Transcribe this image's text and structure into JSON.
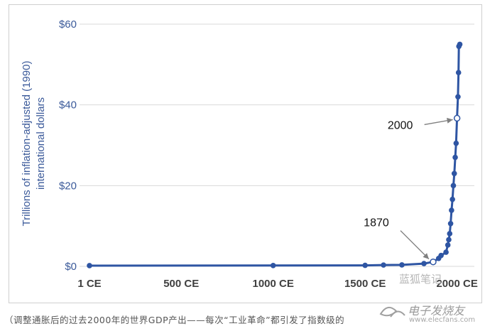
{
  "chart_data": {
    "type": "line",
    "title": "",
    "ylabel_line1": "Trillions of inflation-adjusted (1990)",
    "ylabel_line2": "international dollars",
    "xlabel": "",
    "xlim": [
      1,
      2040
    ],
    "ylim": [
      0,
      60
    ],
    "yticks": [
      {
        "value": 0,
        "label": "$0"
      },
      {
        "value": 20,
        "label": "$20"
      },
      {
        "value": 40,
        "label": "$40"
      },
      {
        "value": 60,
        "label": "$60"
      }
    ],
    "xticks": [
      {
        "value": 1,
        "label": "1 CE"
      },
      {
        "value": 500,
        "label": "500 CE"
      },
      {
        "value": 1000,
        "label": "1000 CE"
      },
      {
        "value": 1500,
        "label": "1500 CE"
      },
      {
        "value": 2000,
        "label": "2000 CE"
      }
    ],
    "grid": true,
    "series": [
      {
        "color": "#2e55a3",
        "x": [
          1,
          1000,
          1500,
          1600,
          1700,
          1820,
          1870,
          1900,
          1913,
          1940,
          1950,
          1955,
          1960,
          1965,
          1970,
          1975,
          1980,
          1985,
          1990,
          1995,
          2000,
          2005,
          2008,
          2010,
          2015
        ],
        "y": [
          0.18,
          0.21,
          0.25,
          0.33,
          0.37,
          0.69,
          1.11,
          1.97,
          2.7,
          3.5,
          5.3,
          6.6,
          8.1,
          10.6,
          13.9,
          16.6,
          20.0,
          23.0,
          27.0,
          30.5,
          36.7,
          42.0,
          48.0,
          54.5,
          55.0
        ],
        "hollow_points": [
          1870,
          2000
        ]
      }
    ],
    "annotations": [
      {
        "text": "1870",
        "x": 1870,
        "y": 1.11
      },
      {
        "text": "2000",
        "x": 2000,
        "y": 36.7
      }
    ]
  },
  "caption": "（调整通胀后的过去2000年的世界GDP产出——每次“工业革命”都引发了指数级的",
  "watermark": "蓝狐笔记",
  "site_mark": {
    "text": "电子发烧友",
    "sub": "www.elecfans.com"
  },
  "colors": {
    "series": "#2e55a3",
    "axis_text": "#3b5a9a",
    "grid": "#d9d9d9"
  }
}
